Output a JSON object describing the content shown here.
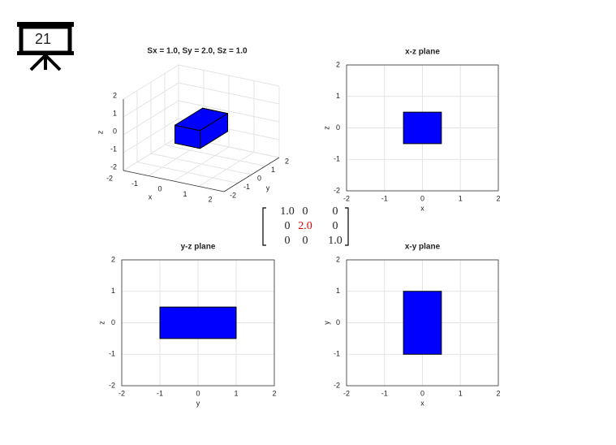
{
  "slide_number": "21",
  "matrix": [
    [
      "1.0",
      "0",
      "0"
    ],
    [
      "0",
      "2.0",
      "0"
    ],
    [
      "0",
      "0",
      "1.0"
    ]
  ],
  "chart_data": [
    {
      "type": "box3d",
      "title": "Sx = 1.0, Sy = 2.0, Sz = 1.0",
      "xlabel": "x",
      "ylabel": "y",
      "zlabel": "z",
      "xlim": [
        -2,
        2
      ],
      "ylim": [
        -2,
        2
      ],
      "zlim": [
        -2,
        2
      ],
      "xticks": [
        -2,
        -1,
        0,
        1,
        2
      ],
      "yticks": [
        -2,
        -1,
        0,
        1,
        2
      ],
      "zticks": [
        -2,
        -1,
        0,
        1,
        2
      ],
      "box": {
        "x": [
          -0.5,
          0.5
        ],
        "y": [
          -1,
          1
        ],
        "z": [
          -0.5,
          0.5
        ]
      },
      "color": "#0000ff",
      "grid": true
    },
    {
      "type": "rectangle",
      "title": "x-z plane",
      "xlabel": "x",
      "ylabel": "z",
      "xlim": [
        -2,
        2
      ],
      "ylim": [
        -2,
        2
      ],
      "xticks": [
        -2,
        -1,
        0,
        1,
        2
      ],
      "yticks": [
        -2,
        -1,
        0,
        1,
        2
      ],
      "x": [
        -0.5,
        0.5
      ],
      "y": [
        -0.5,
        0.5
      ],
      "color": "#0000ff",
      "grid": true
    },
    {
      "type": "rectangle",
      "title": "y-z plane",
      "xlabel": "y",
      "ylabel": "z",
      "xlim": [
        -2,
        2
      ],
      "ylim": [
        -2,
        2
      ],
      "xticks": [
        -2,
        -1,
        0,
        1,
        2
      ],
      "yticks": [
        -2,
        -1,
        0,
        1,
        2
      ],
      "x": [
        -1,
        1
      ],
      "y": [
        -0.5,
        0.5
      ],
      "color": "#0000ff",
      "grid": true
    },
    {
      "type": "rectangle",
      "title": "x-y plane",
      "xlabel": "x",
      "ylabel": "y",
      "xlim": [
        -2,
        2
      ],
      "ylim": [
        -2,
        2
      ],
      "xticks": [
        -2,
        -1,
        0,
        1,
        2
      ],
      "yticks": [
        -2,
        -1,
        0,
        1,
        2
      ],
      "x": [
        -0.5,
        0.5
      ],
      "y": [
        -1,
        1
      ],
      "color": "#0000ff",
      "grid": true
    }
  ]
}
